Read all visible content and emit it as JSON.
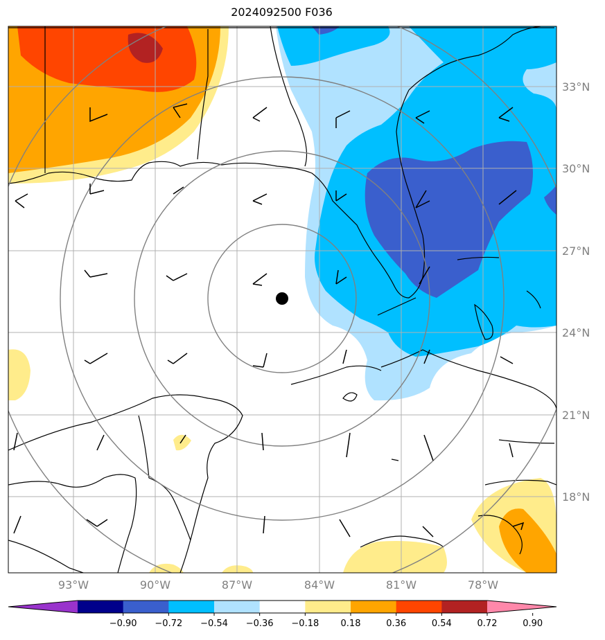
{
  "title": "2024092500 F036",
  "lat_labels": [
    "33°N",
    "30°N",
    "27°N",
    "24°N",
    "21°N",
    "18°N"
  ],
  "lon_labels": [
    "93°W",
    "90°W",
    "87°W",
    "84°W",
    "81°W",
    "78°W"
  ],
  "colorbar": {
    "labels": [
      "−0.90",
      "−0.72",
      "−0.54",
      "−0.36",
      "−0.18",
      "0.18",
      "0.36",
      "0.54",
      "0.72",
      "0.90"
    ],
    "colors": [
      "#9933cc",
      "#00008b",
      "#3a5fcd",
      "#00bfff",
      "#b0e2ff",
      "#ffffff",
      "#ffec8b",
      "#ffa500",
      "#ff4500",
      "#b22222",
      "#ff88aa"
    ]
  },
  "storm_center": {
    "lat": 25.2,
    "lon": -85.3
  }
}
